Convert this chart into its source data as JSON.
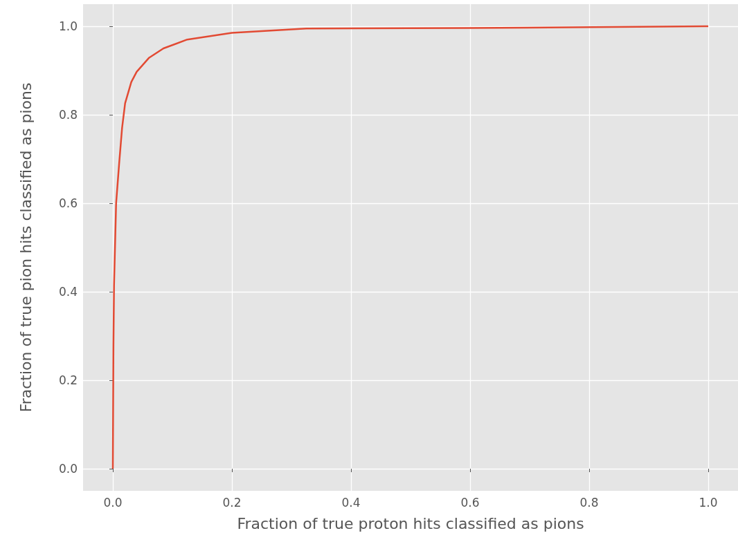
{
  "chart_data": {
    "type": "line",
    "xlabel": "Fraction of true proton hits classified as pions",
    "ylabel": "Fraction of true pion hits classified as pions",
    "x": [
      0,
      0.001,
      0.002,
      0.0055,
      0.0106,
      0.0155,
      0.0206,
      0.031,
      0.04,
      0.061,
      0.085,
      0.125,
      0.2,
      0.325,
      0.6,
      1.0
    ],
    "series": [
      {
        "color": "#e24a33",
        "values": [
          0,
          0.28,
          0.415,
          0.6,
          0.69,
          0.77,
          0.826,
          0.874,
          0.897,
          0.929,
          0.95,
          0.97,
          0.985,
          0.995,
          0.996,
          1.0
        ]
      }
    ],
    "xlim": [
      -0.05,
      1.05
    ],
    "xticks": [
      {
        "value": 0,
        "label": "0.0"
      },
      0.2,
      0.4,
      0.6,
      0.8,
      {
        "value": 1,
        "label": "1.0"
      }
    ],
    "ylim": [
      -0.05,
      1.05
    ],
    "yticks": [
      {
        "value": 0,
        "label": "0.0"
      },
      0.2,
      0.4,
      0.6,
      0.8,
      {
        "value": 1,
        "label": "1.0"
      }
    ],
    "grid": true,
    "marker": "none",
    "line_style": "solid"
  }
}
